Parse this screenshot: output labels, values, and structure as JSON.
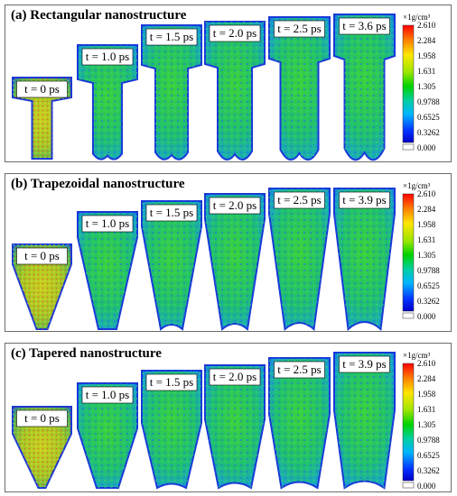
{
  "colors": {
    "low": "#0000ff",
    "mid": "#00c800",
    "high": "#ff0000",
    "empty": "#ffffff"
  },
  "colorbar": {
    "unit": "×1g/cm³",
    "ticks": [
      "2.610",
      "2.284",
      "1.958",
      "1.631",
      "1.305",
      "0.9788",
      "0.6525",
      "0.3262",
      "0.000"
    ]
  },
  "panels": [
    {
      "title": "(a) Rectangular nanostructure",
      "shape": "rectangular",
      "frames": [
        "t = 0 ps",
        "t = 1.0 ps",
        "t = 1.5 ps",
        "t = 2.0 ps",
        "t = 2.5 ps",
        "t = 3.6 ps"
      ]
    },
    {
      "title": "(b) Trapezoidal nanostructure",
      "shape": "trapezoidal",
      "frames": [
        "t = 0 ps",
        "t = 1.0 ps",
        "t = 1.5 ps",
        "t = 2.0 ps",
        "t = 2.5 ps",
        "t = 3.9 ps"
      ]
    },
    {
      "title": "(c) Tapered nanostructure",
      "shape": "tapered",
      "frames": [
        "t = 0 ps",
        "t = 1.0 ps",
        "t = 1.5 ps",
        "t = 2.0 ps",
        "t = 2.5 ps",
        "t = 3.9 ps"
      ]
    }
  ]
}
